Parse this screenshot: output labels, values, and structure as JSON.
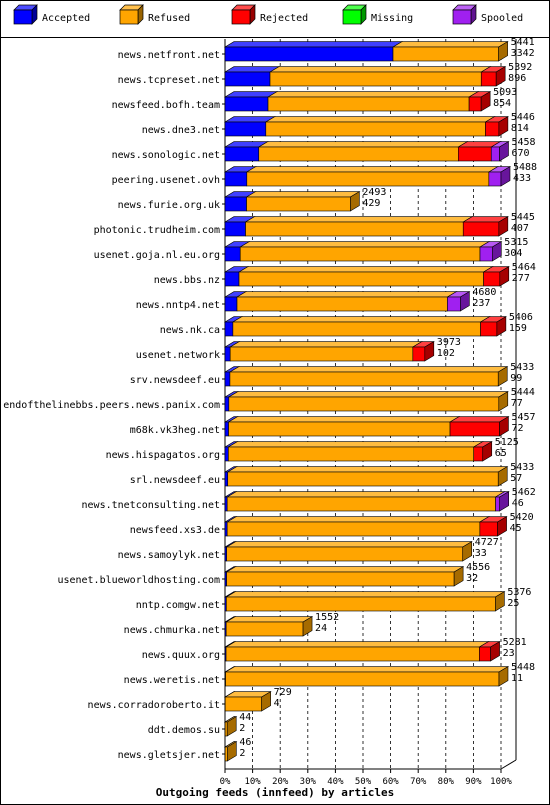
{
  "chart_data": {
    "type": "bar",
    "orientation": "horizontal",
    "stacked": true,
    "style": "3d",
    "title": "Outgoing feeds (innfeed) by articles",
    "x_ticks": [
      "0%",
      "10%",
      "20%",
      "30%",
      "40%",
      "50%",
      "60%",
      "70%",
      "80%",
      "90%",
      "100%"
    ],
    "xlim": [
      0,
      100
    ],
    "grid": true,
    "legend_position": "top",
    "series": [
      {
        "name": "Accepted",
        "color": "#0000ff"
      },
      {
        "name": "Refused",
        "color": "#ffa500"
      },
      {
        "name": "Rejected",
        "color": "#ff0000"
      },
      {
        "name": "Missing",
        "color": "#00ff00"
      },
      {
        "name": "Spooled",
        "color": "#a020f0"
      }
    ],
    "rows": [
      {
        "label": "news.netfront.net",
        "total": "5441",
        "second": "3342",
        "segments": [
          61.4,
          38.6,
          0,
          0,
          0
        ]
      },
      {
        "label": "news.tcpreset.net",
        "total": "5392",
        "second": "896",
        "segments": [
          16.6,
          77.9,
          5.5,
          0,
          0
        ]
      },
      {
        "label": "newsfeed.bofh.team",
        "total": "5093",
        "second": "854",
        "segments": [
          16.8,
          78.5,
          4.7,
          0,
          0
        ]
      },
      {
        "label": "news.dne3.net",
        "total": "5446",
        "second": "814",
        "segments": [
          14.9,
          80.2,
          4.9,
          0,
          0
        ]
      },
      {
        "label": "news.sonologic.net",
        "total": "5458",
        "second": "670",
        "segments": [
          12.3,
          72.7,
          12.0,
          0,
          3.0
        ]
      },
      {
        "label": "peering.usenet.ovh",
        "total": "5488",
        "second": "433",
        "segments": [
          7.9,
          87.7,
          0,
          0,
          4.4
        ]
      },
      {
        "label": "news.furie.org.uk",
        "total": "2493",
        "second": "429",
        "segments": [
          17.2,
          82.8,
          0,
          0,
          0
        ]
      },
      {
        "label": "photonic.trudheim.com",
        "total": "5445",
        "second": "407",
        "segments": [
          7.5,
          79.5,
          13.0,
          0,
          0
        ]
      },
      {
        "label": "usenet.goja.nl.eu.org",
        "total": "5315",
        "second": "304",
        "segments": [
          5.7,
          89.7,
          0,
          0,
          4.6
        ]
      },
      {
        "label": "news.bbs.nz",
        "total": "5464",
        "second": "277",
        "segments": [
          5.1,
          89.0,
          5.9,
          0,
          0
        ]
      },
      {
        "label": "news.nntp4.net",
        "total": "4680",
        "second": "237",
        "segments": [
          5.1,
          89.4,
          0,
          0,
          5.5
        ]
      },
      {
        "label": "news.nk.ca",
        "total": "5406",
        "second": "159",
        "segments": [
          2.9,
          91.1,
          6.0,
          0,
          0
        ]
      },
      {
        "label": "usenet.network",
        "total": "3973",
        "second": "102",
        "segments": [
          2.6,
          91.4,
          6.0,
          0,
          0
        ]
      },
      {
        "label": "srv.newsdeef.eu",
        "total": "5433",
        "second": "99",
        "segments": [
          1.8,
          98.2,
          0,
          0,
          0
        ]
      },
      {
        "label": "endofthelinebbs.peers.news.panix.com",
        "total": "5444",
        "second": "77",
        "segments": [
          1.4,
          98.6,
          0,
          0,
          0
        ]
      },
      {
        "label": "m68k.vk3heg.net",
        "total": "5457",
        "second": "72",
        "segments": [
          1.3,
          80.7,
          18.0,
          0,
          0
        ]
      },
      {
        "label": "news.hispagatos.org",
        "total": "5125",
        "second": "65",
        "segments": [
          1.3,
          95.2,
          3.5,
          0,
          0
        ]
      },
      {
        "label": "srl.newsdeef.eu",
        "total": "5433",
        "second": "57",
        "segments": [
          1.0,
          99.0,
          0,
          0,
          0
        ]
      },
      {
        "label": "news.tnetconsulting.net",
        "total": "5462",
        "second": "46",
        "segments": [
          0.8,
          97.7,
          0,
          0,
          1.5
        ]
      },
      {
        "label": "newsfeed.xs3.de",
        "total": "5420",
        "second": "45",
        "segments": [
          0.8,
          92.7,
          6.5,
          0,
          0
        ]
      },
      {
        "label": "news.samoylyk.net",
        "total": "4727",
        "second": "33",
        "segments": [
          0.7,
          99.3,
          0,
          0,
          0
        ]
      },
      {
        "label": "usenet.blueworldhosting.com",
        "total": "4556",
        "second": "32",
        "segments": [
          0.7,
          99.3,
          0,
          0,
          0
        ]
      },
      {
        "label": "nntp.comgw.net",
        "total": "5376",
        "second": "25",
        "segments": [
          0.5,
          99.5,
          0,
          0,
          0
        ]
      },
      {
        "label": "news.chmurka.net",
        "total": "1552",
        "second": "24",
        "segments": [
          1.5,
          98.5,
          0,
          0,
          0
        ]
      },
      {
        "label": "news.quux.org",
        "total": "5281",
        "second": "23",
        "segments": [
          0.4,
          95.4,
          4.2,
          0,
          0
        ]
      },
      {
        "label": "news.weretis.net",
        "total": "5448",
        "second": "11",
        "segments": [
          0.2,
          99.8,
          0,
          0,
          0
        ]
      },
      {
        "label": "news.corradoroberto.it",
        "total": "729",
        "second": "4",
        "segments": [
          0.5,
          99.5,
          0,
          0,
          0
        ]
      },
      {
        "label": "ddt.demos.su",
        "total": "44",
        "second": "2",
        "segments": [
          4.5,
          95.5,
          0,
          0,
          0
        ]
      },
      {
        "label": "news.gletsjer.net",
        "total": "46",
        "second": "2",
        "segments": [
          4.3,
          95.7,
          0,
          0,
          0
        ]
      }
    ]
  }
}
